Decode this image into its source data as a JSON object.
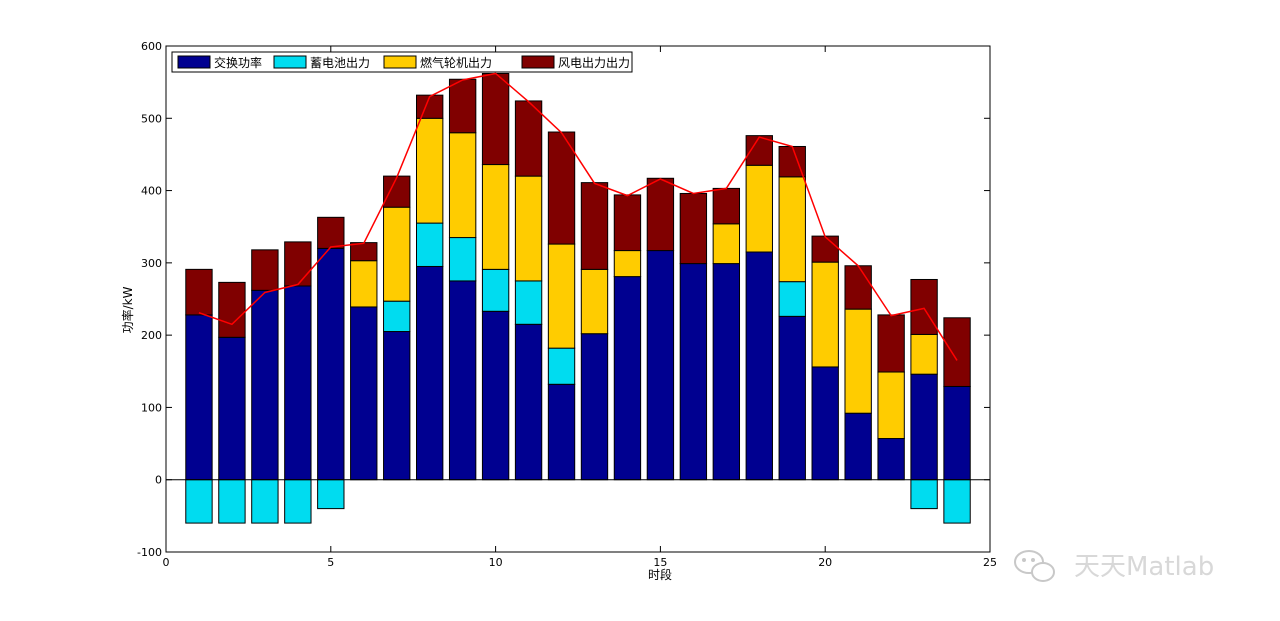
{
  "chart_data": {
    "type": "bar",
    "stacked": true,
    "xlabel": "时段",
    "ylabel": "功率/kW",
    "xlim": [
      0,
      25
    ],
    "ylim": [
      -100,
      600
    ],
    "xticks": [
      "0",
      "5",
      "10",
      "15",
      "20",
      "25"
    ],
    "yticks": [
      "-100",
      "0",
      "100",
      "200",
      "300",
      "400",
      "500",
      "600"
    ],
    "grid": false,
    "legend_position": "top-left",
    "categories": [
      1,
      2,
      3,
      4,
      5,
      6,
      7,
      8,
      9,
      10,
      11,
      12,
      13,
      14,
      15,
      16,
      17,
      18,
      19,
      20,
      21,
      22,
      23,
      24
    ],
    "series": [
      {
        "name": "交换功率",
        "color": "#000090",
        "values": [
          228,
          197,
          262,
          268,
          320,
          239,
          205,
          295,
          275,
          233,
          215,
          132,
          202,
          281,
          317,
          299,
          299,
          315,
          226,
          156,
          92,
          57,
          146,
          129
        ]
      },
      {
        "name": "蓄电池出力",
        "color": "#00dcf0",
        "values": [
          -60,
          -60,
          -60,
          -60,
          -40,
          0,
          42,
          60,
          60,
          58,
          60,
          50,
          0,
          0,
          0,
          0,
          0,
          0,
          48,
          0,
          0,
          0,
          -40,
          -60
        ]
      },
      {
        "name": "燃气轮机出力",
        "color": "#ffcc00",
        "values": [
          0,
          0,
          0,
          0,
          0,
          64,
          130,
          145,
          145,
          145,
          145,
          144,
          89,
          36,
          0,
          0,
          55,
          120,
          145,
          145,
          144,
          92,
          55,
          0
        ]
      },
      {
        "name": "风电出力出力",
        "color": "#800000",
        "values": [
          63,
          76,
          56,
          61,
          43,
          25,
          43,
          32,
          74,
          126,
          104,
          155,
          120,
          77,
          100,
          97,
          49,
          41,
          42,
          36,
          60,
          79,
          76,
          95
        ]
      }
    ],
    "load_line": {
      "color": "#ff0000",
      "values": [
        231,
        215,
        259,
        270,
        322,
        327,
        418,
        530,
        553,
        562,
        523,
        480,
        410,
        393,
        416,
        396,
        403,
        474,
        461,
        336,
        296,
        227,
        237,
        165
      ]
    }
  },
  "watermark": {
    "text": "天天Matlab",
    "icon": "wechat-icon"
  }
}
